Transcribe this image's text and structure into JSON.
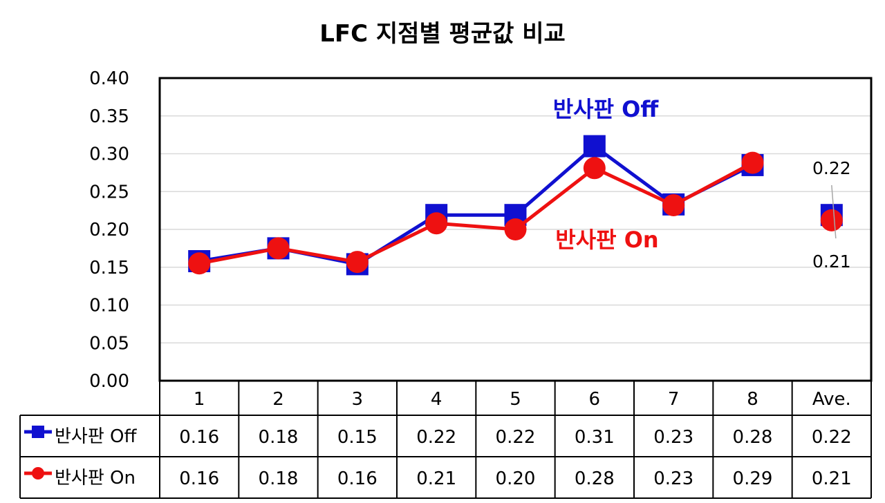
{
  "chart_data": {
    "type": "line",
    "title": "LFC 지점별 평균값 비교",
    "categories": [
      "1",
      "2",
      "3",
      "4",
      "5",
      "6",
      "7",
      "8",
      "Ave."
    ],
    "ylim": [
      0,
      0.4
    ],
    "yticks": [
      "0.00",
      "0.05",
      "0.10",
      "0.15",
      "0.20",
      "0.25",
      "0.30",
      "0.35",
      "0.40"
    ],
    "grid": true,
    "series": [
      {
        "name": "반사판 Off",
        "color": "#1010d0",
        "marker": "square",
        "values": [
          0.158,
          0.175,
          0.154,
          0.219,
          0.219,
          0.31,
          0.233,
          0.285,
          0.219
        ],
        "table_values": [
          "0.16",
          "0.18",
          "0.15",
          "0.22",
          "0.22",
          "0.31",
          "0.23",
          "0.28",
          "0.22"
        ],
        "annotation": "반사판 Off"
      },
      {
        "name": "반사판 On",
        "color": "#ee1111",
        "marker": "circle",
        "values": [
          0.155,
          0.175,
          0.157,
          0.208,
          0.2,
          0.281,
          0.232,
          0.288,
          0.212
        ],
        "table_values": [
          "0.16",
          "0.18",
          "0.16",
          "0.21",
          "0.20",
          "0.28",
          "0.23",
          "0.29",
          "0.21"
        ],
        "annotation": "반사판 On"
      }
    ],
    "data_labels": [
      {
        "series": 0,
        "index": 8,
        "text": "0.22"
      },
      {
        "series": 1,
        "index": 8,
        "text": "0.21"
      }
    ]
  }
}
